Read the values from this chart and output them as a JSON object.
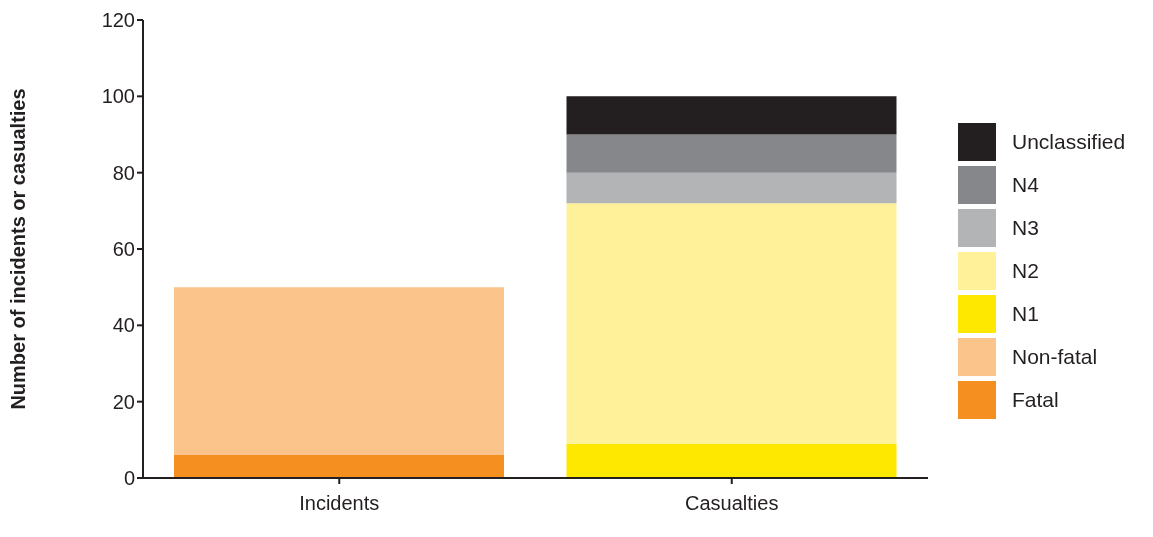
{
  "chart_data": {
    "type": "bar",
    "stacked": true,
    "ylabel": "Number of incidents or casualties",
    "categories": [
      "Incidents",
      "Casualties"
    ],
    "ylim": [
      0,
      120
    ],
    "yticks": [
      0,
      20,
      40,
      60,
      80,
      100,
      120
    ],
    "grid": false,
    "legend": "right",
    "series": [
      {
        "name": "Fatal",
        "color": "#f58f1f",
        "values": [
          6,
          null
        ]
      },
      {
        "name": "Non-fatal",
        "color": "#fac48b",
        "values": [
          44,
          null
        ]
      },
      {
        "name": "N1",
        "color": "#ffe800",
        "values": [
          null,
          9
        ]
      },
      {
        "name": "N2",
        "color": "#fef199",
        "values": [
          null,
          63
        ]
      },
      {
        "name": "N3",
        "color": "#b3b4b6",
        "values": [
          null,
          8
        ]
      },
      {
        "name": "N4",
        "color": "#86878b",
        "values": [
          null,
          10
        ]
      },
      {
        "name": "Unclassified",
        "color": "#231f20",
        "values": [
          null,
          10
        ]
      }
    ]
  }
}
